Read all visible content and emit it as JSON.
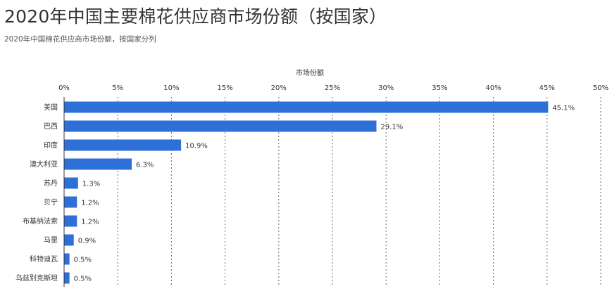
{
  "header": {
    "title": "2020年中国主要棉花供应商市场份额（按国家）",
    "subtitle": "2020年中国棉花供应商市场份额，按国家分列"
  },
  "chart_data": {
    "type": "bar",
    "orientation": "horizontal",
    "title": "2020年中国主要棉花供应商市场份额（按国家）",
    "subtitle": "2020年中国棉花供应商市场份额，按国家分列",
    "xlabel": "市场份额",
    "ylabel": "",
    "axis_position": "top",
    "xlim": [
      0,
      50
    ],
    "tick_step": 5,
    "tick_suffix": "%",
    "value_suffix": "%",
    "grid": true,
    "bar_color": "#2e6fd8",
    "categories": [
      "美国",
      "巴西",
      "印度",
      "澳大利亚",
      "苏丹",
      "贝宁",
      "布基纳法索",
      "马里",
      "科特迪瓦",
      "乌兹别克斯坦"
    ],
    "values": [
      45.1,
      29.1,
      10.9,
      6.3,
      1.3,
      1.2,
      1.2,
      0.9,
      0.5,
      0.5
    ]
  }
}
